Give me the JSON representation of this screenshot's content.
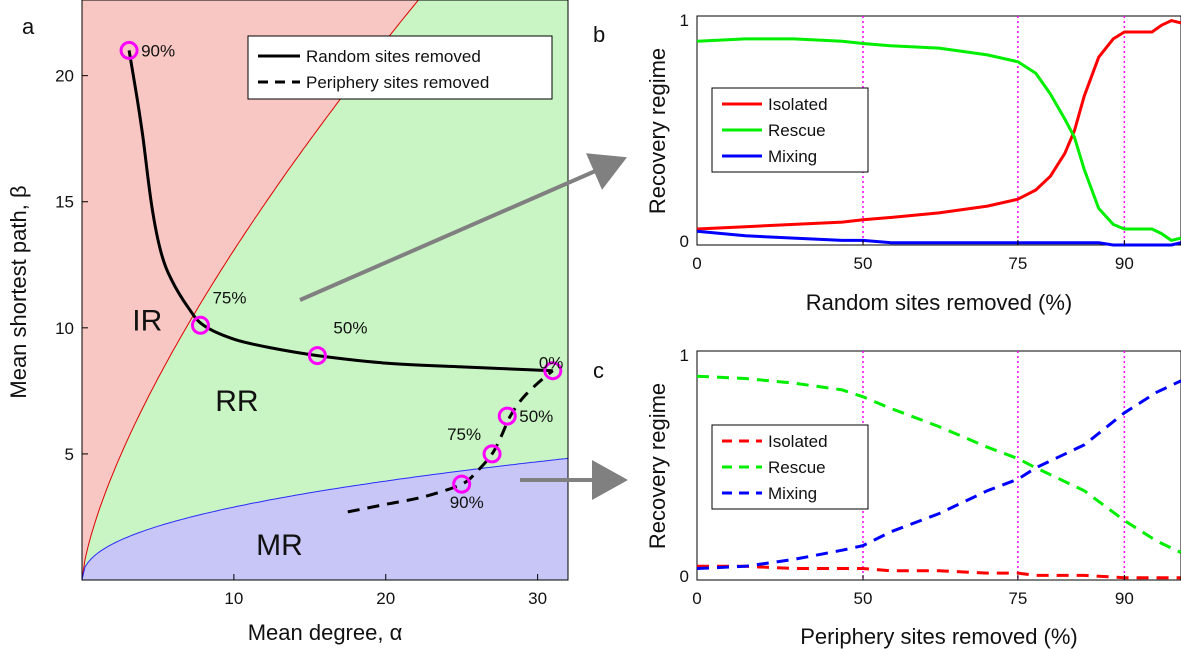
{
  "panel_letters": {
    "a": "a",
    "b": "b",
    "c": "c"
  },
  "chart_data": [
    {
      "type": "line",
      "panel": "a",
      "xlabel": "Mean degree, α",
      "ylabel": "Mean shortest path, β",
      "xlim": [
        0,
        32
      ],
      "ylim": [
        0,
        23
      ],
      "xticks": [
        10,
        20,
        30
      ],
      "yticks": [
        5,
        10,
        15,
        20
      ],
      "grid": false,
      "legend_position": "top-right",
      "regions": [
        {
          "label": "IR",
          "color": "#f9c7c3",
          "edge": "#e00000",
          "boundary": {
            "coef": 2.55,
            "power": 0.71
          }
        },
        {
          "label": "RR",
          "color": "#c8f5c3"
        },
        {
          "label": "MR",
          "color": "#c7c6f7",
          "edge": "#2b2bff",
          "boundary": {
            "coef": 1.05,
            "power": 0.44
          }
        }
      ],
      "series": [
        {
          "name": "Random sites removed",
          "style": "solid",
          "color": "#000000",
          "x": [
            3.1,
            3.6,
            4.0,
            4.6,
            5.2,
            5.9,
            7.0,
            8.0,
            10.0,
            12.5,
            15.5,
            20.0,
            25.0,
            31.0
          ],
          "y": [
            21.0,
            19.2,
            17.6,
            14.8,
            13.0,
            11.9,
            10.8,
            10.1,
            9.55,
            9.2,
            8.9,
            8.6,
            8.45,
            8.3
          ]
        },
        {
          "name": "Periphery sites removed",
          "style": "dashed",
          "color": "#000000",
          "x": [
            17.5,
            20.0,
            22.5,
            25.0,
            26.0,
            27.0,
            27.6,
            28.2,
            29.0,
            30.0,
            31.0
          ],
          "y": [
            2.7,
            3.0,
            3.3,
            3.8,
            4.3,
            5.0,
            5.7,
            6.5,
            7.2,
            7.8,
            8.3
          ]
        }
      ],
      "markers": [
        {
          "x": 3.1,
          "y": 21.0,
          "label": "90%",
          "series": "Random sites removed"
        },
        {
          "x": 7.8,
          "y": 10.1,
          "label": "75%",
          "series": "Random sites removed"
        },
        {
          "x": 15.5,
          "y": 8.9,
          "label": "50%",
          "series": "Random sites removed"
        },
        {
          "x": 31.0,
          "y": 8.3,
          "label": "0%",
          "series": "Random sites removed"
        },
        {
          "x": 28.0,
          "y": 6.5,
          "label": "50%",
          "series": "Periphery sites removed"
        },
        {
          "x": 27.0,
          "y": 5.0,
          "label": "75%",
          "series": "Periphery sites removed"
        },
        {
          "x": 25.0,
          "y": 3.8,
          "label": "90%",
          "series": "Periphery sites removed"
        }
      ],
      "marker_color": "#ff00ff"
    },
    {
      "type": "line",
      "panel": "b",
      "xlabel": "Random sites removed (%)",
      "ylabel": "Recovery regime",
      "ylim": [
        0,
        1
      ],
      "yticks": [
        0,
        1
      ],
      "xtick_positions": [
        0,
        0.343,
        0.663,
        0.883,
        1.0
      ],
      "xtick_labels": [
        "0",
        "50",
        "75",
        "90",
        ""
      ],
      "vlines": [
        0.343,
        0.663,
        0.883
      ],
      "vline_color": "#ff00ff",
      "legend_position": "middle-left",
      "x": [
        0,
        0.1,
        0.2,
        0.3,
        0.343,
        0.4,
        0.5,
        0.6,
        0.663,
        0.7,
        0.73,
        0.76,
        0.78,
        0.8,
        0.83,
        0.86,
        0.883,
        0.91,
        0.94,
        0.96,
        0.98,
        1.0
      ],
      "series": [
        {
          "name": "Isolated",
          "style": "solid",
          "color": "#ff0000",
          "values": [
            0.07,
            0.08,
            0.09,
            0.1,
            0.11,
            0.12,
            0.14,
            0.17,
            0.2,
            0.24,
            0.3,
            0.4,
            0.5,
            0.65,
            0.82,
            0.9,
            0.93,
            0.93,
            0.93,
            0.96,
            0.98,
            0.97
          ]
        },
        {
          "name": "Rescue",
          "style": "solid",
          "color": "#00ee00",
          "values": [
            0.89,
            0.9,
            0.9,
            0.89,
            0.88,
            0.87,
            0.86,
            0.83,
            0.8,
            0.75,
            0.66,
            0.55,
            0.47,
            0.33,
            0.16,
            0.09,
            0.07,
            0.07,
            0.07,
            0.05,
            0.02,
            0.03
          ]
        },
        {
          "name": "Mixing",
          "style": "solid",
          "color": "#0000ff",
          "values": [
            0.06,
            0.04,
            0.03,
            0.02,
            0.02,
            0.01,
            0.01,
            0.01,
            0.01,
            0.01,
            0.01,
            0.01,
            0.01,
            0.01,
            0.01,
            0.0,
            0.0,
            0.0,
            0.0,
            0.0,
            0.0,
            0.01
          ]
        }
      ]
    },
    {
      "type": "line",
      "panel": "c",
      "xlabel": "Periphery sites removed (%)",
      "ylabel": "Recovery regime",
      "ylim": [
        0,
        1
      ],
      "yticks": [
        0,
        1
      ],
      "xtick_positions": [
        0,
        0.343,
        0.663,
        0.883,
        1.0
      ],
      "xtick_labels": [
        "0",
        "50",
        "75",
        "90",
        ""
      ],
      "vlines": [
        0.343,
        0.663,
        0.883
      ],
      "vline_color": "#ff00ff",
      "legend_position": "bottom-left",
      "x": [
        0,
        0.1,
        0.2,
        0.3,
        0.343,
        0.4,
        0.5,
        0.6,
        0.663,
        0.7,
        0.8,
        0.883,
        0.95,
        1.0
      ],
      "series": [
        {
          "name": "Isolated",
          "style": "dashed",
          "color": "#ff0000",
          "values": [
            0.06,
            0.06,
            0.05,
            0.05,
            0.05,
            0.04,
            0.04,
            0.03,
            0.03,
            0.02,
            0.02,
            0.01,
            0.01,
            0.01
          ]
        },
        {
          "name": "Rescue",
          "style": "dashed",
          "color": "#00ee00",
          "values": [
            0.89,
            0.88,
            0.86,
            0.83,
            0.8,
            0.75,
            0.67,
            0.58,
            0.53,
            0.49,
            0.39,
            0.26,
            0.17,
            0.12
          ]
        },
        {
          "name": "Mixing",
          "style": "dashed",
          "color": "#0000ff",
          "values": [
            0.05,
            0.06,
            0.09,
            0.13,
            0.15,
            0.21,
            0.29,
            0.39,
            0.44,
            0.49,
            0.59,
            0.73,
            0.82,
            0.87
          ]
        }
      ]
    }
  ],
  "arrow_color": "#808080"
}
